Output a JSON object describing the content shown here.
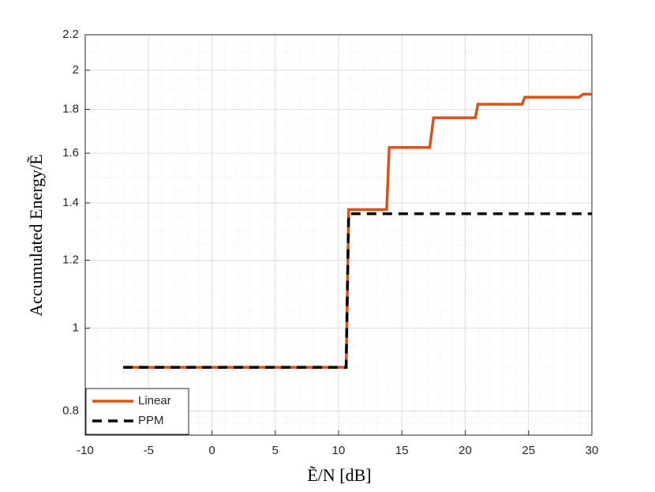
{
  "chart_data": {
    "type": "line",
    "xlabel": "Ẽ/N [dB]",
    "ylabel": "Accumulated Energy/Ẽ",
    "xlim": [
      -10,
      30
    ],
    "xticks": [
      -10,
      -5,
      0,
      5,
      10,
      15,
      20,
      25,
      30
    ],
    "ylim": [
      0.75,
      2.2
    ],
    "yticks": [
      0.8,
      1,
      1.2,
      1.4,
      1.6,
      1.8,
      2,
      2.2
    ],
    "y_scale": "log",
    "grid": true,
    "minor_grid": true,
    "legend_position": "lower left",
    "series": [
      {
        "name": "Linear",
        "color": "#d95319",
        "dash": "solid",
        "x": [
          -7,
          10.6,
          10.8,
          13.8,
          14,
          17.2,
          17.5,
          20.8,
          21,
          24.5,
          24.7,
          29,
          29.3,
          30
        ],
        "values": [
          0.9,
          0.9,
          1.375,
          1.375,
          1.625,
          1.625,
          1.76,
          1.76,
          1.825,
          1.825,
          1.86,
          1.86,
          1.875,
          1.875
        ]
      },
      {
        "name": "PPM",
        "color": "#000000",
        "dash": "dashed",
        "x": [
          -7,
          10.6,
          10.8,
          30
        ],
        "values": [
          0.9,
          0.9,
          1.36,
          1.36
        ]
      }
    ]
  }
}
